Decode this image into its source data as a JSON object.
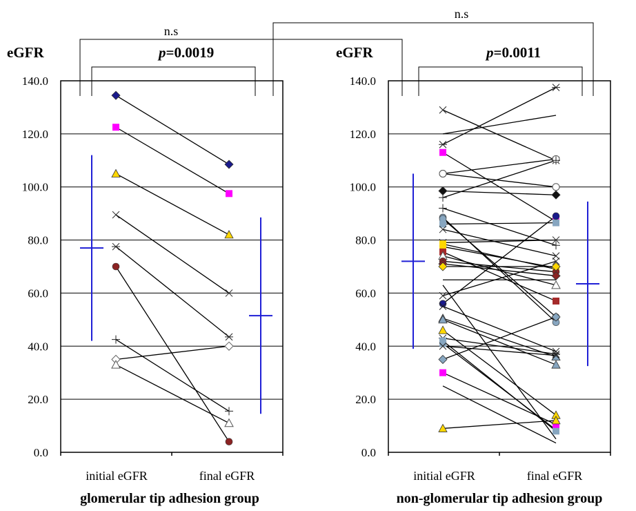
{
  "figure": {
    "comparison_label": "n.s"
  },
  "chart_data": [
    {
      "type": "line",
      "title": "glomerular tip adhesion group",
      "ylabel": "eGFR",
      "ylim": [
        0,
        140
      ],
      "yticks": [
        "0.0",
        "20.0",
        "40.0",
        "60.0",
        "80.0",
        "100.0",
        "120.0",
        "140.0"
      ],
      "categories": [
        "initial eGFR",
        "final eGFR"
      ],
      "significance_initial_vs_final": "p=0.0019",
      "grid": true,
      "summary": {
        "initial_mean": 77.0,
        "initial_sd": 35.0,
        "final_mean": 51.5,
        "final_sd": 37.0
      },
      "patients": [
        {
          "initial": 134.5,
          "final": 108.5,
          "marker": "diamond",
          "color": "#1a1a8c"
        },
        {
          "initial": 122.5,
          "final": 97.5,
          "marker": "square",
          "color": "#ff00ff"
        },
        {
          "initial": 105.0,
          "final": 82.0,
          "marker": "triangle",
          "color": "#ffd700"
        },
        {
          "initial": 89.5,
          "final": 60.0,
          "marker": "x",
          "color": "#222222"
        },
        {
          "initial": 77.5,
          "final": 43.5,
          "marker": "asterisk",
          "color": "#222222"
        },
        {
          "initial": 70.0,
          "final": 4.0,
          "marker": "circle",
          "color": "#8b2323"
        },
        {
          "initial": 42.5,
          "final": 15.5,
          "marker": "plus",
          "color": "#222222"
        },
        {
          "initial": 35.0,
          "final": 40.0,
          "marker": "diamond-open",
          "color": "#ffffff"
        },
        {
          "initial": 33.0,
          "final": 11.0,
          "marker": "triangle-open",
          "color": "#ffffff"
        }
      ]
    },
    {
      "type": "line",
      "title": "non-glomerular tip adhesion group",
      "ylabel": "eGFR",
      "ylim": [
        0,
        140
      ],
      "yticks": [
        "0.0",
        "20.0",
        "40.0",
        "60.0",
        "80.0",
        "100.0",
        "120.0",
        "140.0"
      ],
      "categories": [
        "initial eGFR",
        "final eGFR"
      ],
      "significance_initial_vs_final": "p=0.0011",
      "grid": true,
      "summary": {
        "initial_mean": 72.0,
        "initial_sd": 33.0,
        "final_mean": 63.5,
        "final_sd": 31.0
      },
      "patients": [
        {
          "initial": 129.0,
          "final": 110.0,
          "marker": "x",
          "color": "#222222"
        },
        {
          "initial": 120.0,
          "final": 127.0,
          "marker": "none",
          "color": "#222222"
        },
        {
          "initial": 116.0,
          "final": 137.5,
          "marker": "asterisk",
          "color": "#222222"
        },
        {
          "initial": 113.0,
          "final": 87.0,
          "marker": "square",
          "color": "#ff00ff"
        },
        {
          "initial": 105.0,
          "final": 110.5,
          "marker": "circle-open",
          "color": "#ffffff"
        },
        {
          "initial": 105.0,
          "final": 100.0,
          "marker": "circle-open",
          "color": "#ffffff"
        },
        {
          "initial": 98.5,
          "final": 97.0,
          "marker": "diamond",
          "color": "#111111"
        },
        {
          "initial": 96.0,
          "final": 110.0,
          "marker": "plus",
          "color": "#222222"
        },
        {
          "initial": 92.0,
          "final": 78.0,
          "marker": "plus",
          "color": "#222222"
        },
        {
          "initial": 88.5,
          "final": 49.0,
          "marker": "circle",
          "color": "#87a6c0"
        },
        {
          "initial": 88.0,
          "final": 51.0,
          "marker": "circle",
          "color": "#87a6c0"
        },
        {
          "initial": 86.0,
          "final": 86.5,
          "marker": "square",
          "color": "#87a6c0"
        },
        {
          "initial": 84.0,
          "final": 74.0,
          "marker": "x",
          "color": "#222222"
        },
        {
          "initial": 79.0,
          "final": 80.0,
          "marker": "x",
          "color": "#222222"
        },
        {
          "initial": 78.5,
          "final": 69.0,
          "marker": "square",
          "color": "#ffd700"
        },
        {
          "initial": 77.5,
          "final": 69.5,
          "marker": "square",
          "color": "#ffd700"
        },
        {
          "initial": 75.5,
          "final": 57.0,
          "marker": "square",
          "color": "#a52a2a"
        },
        {
          "initial": 74.0,
          "final": 63.0,
          "marker": "triangle-open",
          "color": "#ffffff"
        },
        {
          "initial": 72.0,
          "final": 68.0,
          "marker": "circle",
          "color": "#8b2323"
        },
        {
          "initial": 71.0,
          "final": 66.5,
          "marker": "diamond",
          "color": "#8b2323"
        },
        {
          "initial": 70.0,
          "final": 70.0,
          "marker": "diamond",
          "color": "#ffd700"
        },
        {
          "initial": 65.0,
          "final": 65.0,
          "marker": "none",
          "color": "#222222"
        },
        {
          "initial": 59.0,
          "final": 72.0,
          "marker": "x",
          "color": "#222222"
        },
        {
          "initial": 56.0,
          "final": 89.0,
          "marker": "circle",
          "color": "#1a1a8c"
        },
        {
          "initial": 55.0,
          "final": 38.0,
          "marker": "x",
          "color": "#222222"
        },
        {
          "initial": 50.5,
          "final": 36.0,
          "marker": "triangle",
          "color": "#87a6c0"
        },
        {
          "initial": 50.0,
          "final": 33.0,
          "marker": "triangle",
          "color": "#87a6c0"
        },
        {
          "initial": 46.0,
          "final": 14.0,
          "marker": "triangle",
          "color": "#ffd700"
        },
        {
          "initial": 43.0,
          "final": 37.0,
          "marker": "asterisk",
          "color": "#222222"
        },
        {
          "initial": 42.0,
          "final": 8.0,
          "marker": "square",
          "color": "#87a6c0"
        },
        {
          "initial": 41.0,
          "final": 8.5,
          "marker": "square",
          "color": "#87a6c0"
        },
        {
          "initial": 40.0,
          "final": 36.5,
          "marker": "x",
          "color": "#222222"
        },
        {
          "initial": 35.0,
          "final": 51.0,
          "marker": "diamond",
          "color": "#87a6c0"
        },
        {
          "initial": 30.0,
          "final": 10.5,
          "marker": "square",
          "color": "#ff00ff"
        },
        {
          "initial": 25.0,
          "final": 3.5,
          "marker": "none",
          "color": "#222222"
        },
        {
          "initial": 9.0,
          "final": 12.0,
          "marker": "triangle",
          "color": "#ffd700"
        },
        {
          "initial": 63.0,
          "final": 5.0,
          "marker": "none",
          "color": "#222222"
        }
      ]
    }
  ]
}
